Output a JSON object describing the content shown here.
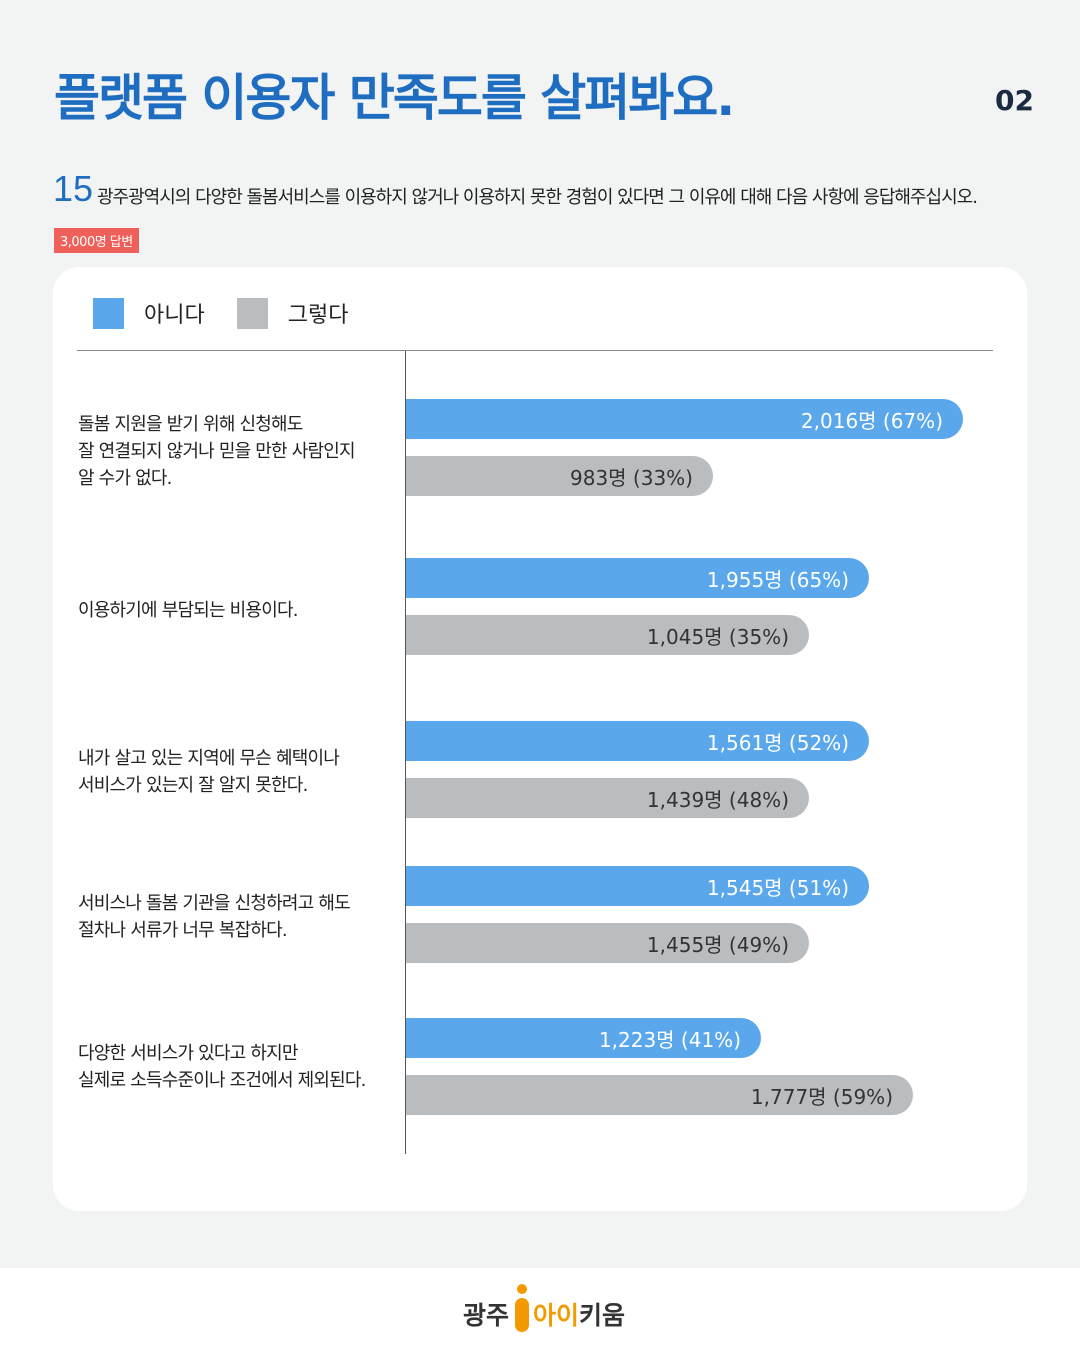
{
  "header": {
    "title": "플랫폼 이용자 만족도를 살펴봐요.",
    "page": "02"
  },
  "question": {
    "number": "15",
    "text": "광주광역시의 다양한 돌봄서비스를 이용하지 않거나 이용하지 못한 경험이 있다면 그 이유에 대해 다음 사항에 응답해주십시오.",
    "badge": "3,000명 답변"
  },
  "chart_data": {
    "type": "bar",
    "orientation": "horizontal",
    "legend": [
      "아니다",
      "그렇다"
    ],
    "legend_position": "top-left",
    "colors": {
      "아니다": "#5aa7ec",
      "그렇다": "#b9bdc0"
    },
    "categories": [
      "돌봄 지원을 받기 위해 신청해도\n잘 연결되지 않거나 믿을 만한 사람인지\n알 수가 없다.",
      "이용하기에 부담되는 비용이다.",
      "내가 살고 있는 지역에 무슨 혜택이나\n서비스가 있는지 잘 알지 못한다.",
      "서비스나 돌봄 기관을 신청하려고 해도\n절차나 서류가 너무 복잡하다.",
      "다양한 서비스가 있다고 하지만\n실제로 소득수준이나 조건에서 제외된다."
    ],
    "series": [
      {
        "name": "아니다",
        "values": [
          2016,
          1955,
          1561,
          1545,
          1223
        ],
        "percent": [
          67,
          65,
          52,
          51,
          41
        ],
        "labels": [
          "2,016명 (67%)",
          "1,955명 (65%)",
          "1,561명 (52%)",
          "1,545명 (51%)",
          "1,223명 (41%)"
        ]
      },
      {
        "name": "그렇다",
        "values": [
          983,
          1045,
          1439,
          1455,
          1777
        ],
        "percent": [
          33,
          35,
          48,
          49,
          59
        ],
        "labels": [
          "983명 (33%)",
          "1,045명 (35%)",
          "1,439명 (48%)",
          "1,455명 (49%)",
          "1,777명 (59%)"
        ]
      }
    ]
  },
  "footer": {
    "logo": "광주 아이키움"
  }
}
